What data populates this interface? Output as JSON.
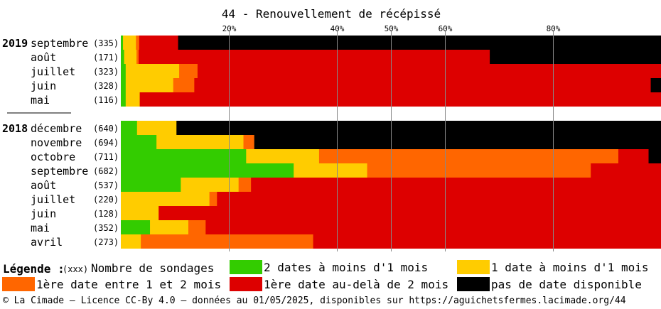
{
  "chart_data": {
    "type": "bar",
    "stacked": true,
    "orientation": "horizontal",
    "title": "44 - Renouvellement de récépissé",
    "ticks": [
      "20%",
      "40%",
      "50%",
      "60%",
      "80%"
    ],
    "xlim": [
      0,
      100
    ],
    "colors": {
      "2 dates à moins d'1 mois": "#33cc00",
      "1 date à moins d'1 mois": "#ffcc00",
      "1ère date entre 1 et 2 mois": "#ff6600",
      "1ère date au-delà de 2 mois": "#dd0000",
      "pas de date disponible": "#000000"
    },
    "groups": [
      {
        "year": "2019",
        "rows": [
          {
            "month": "septembre",
            "count": "(335)",
            "values": [
              0.4,
              2.4,
              0.6,
              7.2,
              89.4
            ]
          },
          {
            "month": "août",
            "count": "(171)",
            "values": [
              0.6,
              2.3,
              0.4,
              65.0,
              31.7
            ]
          },
          {
            "month": "juillet",
            "count": "(323)",
            "values": [
              0.9,
              9.9,
              3.4,
              85.8,
              0.0
            ]
          },
          {
            "month": "juin",
            "count": "(328)",
            "values": [
              0.9,
              8.8,
              3.9,
              84.5,
              1.9
            ]
          },
          {
            "month": "mai",
            "count": "(116)",
            "values": [
              0.9,
              2.6,
              0.0,
              96.5,
              0.0
            ]
          }
        ]
      },
      {
        "year": "2018",
        "rows": [
          {
            "month": "décembre",
            "count": "(640)",
            "values": [
              3.0,
              7.3,
              0.0,
              0.0,
              89.7
            ]
          },
          {
            "month": "novembre",
            "count": "(694)",
            "values": [
              6.6,
              16.1,
              2.0,
              0.0,
              75.3
            ]
          },
          {
            "month": "octobre",
            "count": "(711)",
            "values": [
              23.2,
              13.5,
              55.4,
              5.6,
              2.3
            ]
          },
          {
            "month": "septembre",
            "count": "(682)",
            "values": [
              32.0,
              13.6,
              41.4,
              13.0,
              0.0
            ]
          },
          {
            "month": "août",
            "count": "(537)",
            "values": [
              11.1,
              10.7,
              2.3,
              75.9,
              0.0
            ]
          },
          {
            "month": "juillet",
            "count": "(220)",
            "values": [
              0.0,
              16.4,
              1.4,
              82.2,
              0.0
            ]
          },
          {
            "month": "juin",
            "count": "(128)",
            "values": [
              0.0,
              7.0,
              0.0,
              93.0,
              0.0
            ]
          },
          {
            "month": "mai",
            "count": "(352)",
            "values": [
              5.4,
              7.1,
              3.2,
              84.3,
              0.0
            ]
          },
          {
            "month": "avril",
            "count": "(273)",
            "values": [
              0.0,
              3.7,
              31.9,
              64.4,
              0.0
            ]
          }
        ]
      }
    ]
  },
  "legend": {
    "heading": "Légende :",
    "count_hint": "(xxx)",
    "count_label": "Nombre de sondages",
    "items": [
      {
        "label": "2 dates à moins d'1 mois",
        "color": "#33cc00"
      },
      {
        "label": "1 date à moins d'1 mois",
        "color": "#ffcc00"
      },
      {
        "label": "1ère date entre 1 et 2 mois",
        "color": "#ff6600"
      },
      {
        "label": "1ère date au-delà de 2 mois",
        "color": "#dd0000"
      },
      {
        "label": "pas de date disponible",
        "color": "#000000"
      }
    ]
  },
  "footer": "© La Cimade – Licence CC-By 4.0 – données au 01/05/2025, disponibles sur https://aguichetsfermes.lacimade.org/44"
}
